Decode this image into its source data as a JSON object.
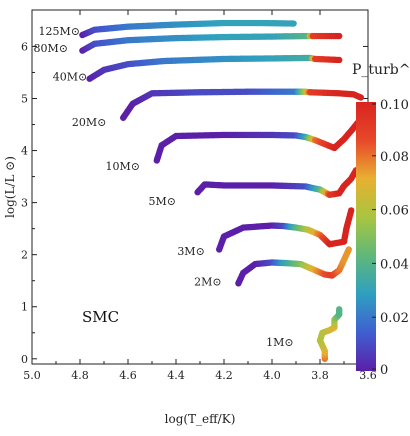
{
  "chart_data": {
    "type": "scatter",
    "xlabel": "log(T_eff/K)",
    "ylabel": "log(L/L ⊙)",
    "xlim": [
      5.0,
      3.6
    ],
    "ylim": [
      -0.1,
      6.7
    ],
    "x_ticks": [
      "5.0",
      "4.8",
      "4.6",
      "4.4",
      "4.2",
      "4.0",
      "3.8",
      "3.6"
    ],
    "x_tick_values": [
      5.0,
      4.8,
      4.6,
      4.4,
      4.2,
      4.0,
      3.8,
      3.6
    ],
    "y_ticks": [
      "0",
      "1",
      "2",
      "3",
      "4",
      "5",
      "6"
    ],
    "y_tick_values": [
      0,
      1,
      2,
      3,
      4,
      5,
      6
    ],
    "grid": false,
    "annotation": "SMC",
    "colorbar": {
      "title": "P_turb^max/P",
      "min": 0,
      "max": 0.1,
      "tick_labels": [
        "0.10",
        "0.08",
        "0.06",
        "0.04",
        "0.02",
        "0"
      ],
      "tick_values": [
        0.1,
        0.08,
        0.06,
        0.04,
        0.02,
        0
      ],
      "colors": [
        "#5b1fa8",
        "#3f5fd0",
        "#2f9fc0",
        "#5fb87a",
        "#a8c540",
        "#e8b030",
        "#e8482a",
        "#d8241f"
      ]
    },
    "tracks": [
      {
        "label": "125M⊙",
        "label_pos": [
          4.8,
          6.3
        ],
        "points": [
          [
            4.79,
            6.22,
            0.0
          ],
          [
            4.74,
            6.32,
            0.01
          ],
          [
            4.6,
            6.38,
            0.02
          ],
          [
            4.4,
            6.42,
            0.025
          ],
          [
            4.2,
            6.45,
            0.03
          ],
          [
            4.05,
            6.45,
            0.03
          ],
          [
            3.91,
            6.44,
            0.03
          ]
        ]
      },
      {
        "label": "80M⊙",
        "label_pos": [
          4.85,
          5.97
        ],
        "points": [
          [
            4.79,
            5.92,
            0.0
          ],
          [
            4.74,
            6.05,
            0.01
          ],
          [
            4.6,
            6.12,
            0.02
          ],
          [
            4.4,
            6.16,
            0.025
          ],
          [
            4.2,
            6.18,
            0.03
          ],
          [
            4.0,
            6.19,
            0.03
          ],
          [
            3.85,
            6.2,
            0.04
          ],
          [
            3.83,
            6.2,
            0.09
          ],
          [
            3.72,
            6.2,
            0.1
          ]
        ]
      },
      {
        "label": "40M⊙",
        "label_pos": [
          4.77,
          5.42
        ],
        "points": [
          [
            4.76,
            5.38,
            0.0
          ],
          [
            4.7,
            5.55,
            0.005
          ],
          [
            4.6,
            5.66,
            0.01
          ],
          [
            4.45,
            5.72,
            0.02
          ],
          [
            4.2,
            5.76,
            0.025
          ],
          [
            4.0,
            5.77,
            0.03
          ],
          [
            3.84,
            5.78,
            0.035
          ],
          [
            3.82,
            5.76,
            0.09
          ],
          [
            3.72,
            5.74,
            0.1
          ]
        ]
      },
      {
        "label": "20M⊙",
        "label_pos": [
          4.69,
          4.55
        ],
        "points": [
          [
            4.62,
            4.63,
            0.0
          ],
          [
            4.58,
            4.9,
            0.0
          ],
          [
            4.5,
            5.1,
            0.005
          ],
          [
            4.3,
            5.12,
            0.01
          ],
          [
            4.1,
            5.13,
            0.01
          ],
          [
            3.9,
            5.13,
            0.02
          ],
          [
            3.86,
            5.13,
            0.06
          ],
          [
            3.84,
            5.12,
            0.09
          ],
          [
            3.72,
            5.1,
            0.1
          ],
          [
            3.66,
            5.08,
            0.1
          ],
          [
            3.63,
            5.02,
            0.1
          ]
        ]
      },
      {
        "label": "10M⊙",
        "label_pos": [
          4.55,
          3.7
        ],
        "points": [
          [
            4.48,
            3.81,
            0.0
          ],
          [
            4.46,
            4.1,
            0.0
          ],
          [
            4.4,
            4.28,
            0.0
          ],
          [
            4.2,
            4.3,
            0.0
          ],
          [
            4.0,
            4.3,
            0.005
          ],
          [
            3.9,
            4.29,
            0.01
          ],
          [
            3.86,
            4.26,
            0.03
          ],
          [
            3.82,
            4.2,
            0.08
          ],
          [
            3.74,
            4.05,
            0.1
          ],
          [
            3.7,
            4.22,
            0.1
          ],
          [
            3.67,
            4.38,
            0.1
          ],
          [
            3.64,
            4.55,
            0.1
          ]
        ]
      },
      {
        "label": "5M⊙",
        "label_pos": [
          4.4,
          3.03
        ],
        "points": [
          [
            4.31,
            3.2,
            0.0
          ],
          [
            4.28,
            3.35,
            0.0
          ],
          [
            4.2,
            3.33,
            0.0
          ],
          [
            4.0,
            3.33,
            0.0
          ],
          [
            3.86,
            3.31,
            0.01
          ],
          [
            3.8,
            3.25,
            0.04
          ],
          [
            3.76,
            3.15,
            0.09
          ],
          [
            3.72,
            3.18,
            0.1
          ],
          [
            3.7,
            3.32,
            0.1
          ],
          [
            3.67,
            3.46,
            0.1
          ],
          [
            3.65,
            3.62,
            0.1
          ]
        ]
      },
      {
        "label": "3M⊙",
        "label_pos": [
          4.28,
          2.07
        ],
        "points": [
          [
            4.22,
            2.1,
            0.0
          ],
          [
            4.2,
            2.35,
            0.0
          ],
          [
            4.12,
            2.52,
            0.0
          ],
          [
            4.0,
            2.56,
            0.0
          ],
          [
            3.95,
            2.55,
            0.01
          ],
          [
            3.9,
            2.52,
            0.04
          ],
          [
            3.85,
            2.48,
            0.06
          ],
          [
            3.8,
            2.38,
            0.08
          ],
          [
            3.76,
            2.2,
            0.1
          ],
          [
            3.7,
            2.25,
            0.1
          ],
          [
            3.69,
            2.5,
            0.1
          ],
          [
            3.67,
            2.85,
            0.1
          ]
        ]
      },
      {
        "label": "2M⊙",
        "label_pos": [
          4.21,
          1.48
        ],
        "points": [
          [
            4.14,
            1.45,
            0.0
          ],
          [
            4.12,
            1.65,
            0.0
          ],
          [
            4.07,
            1.82,
            0.0
          ],
          [
            4.0,
            1.85,
            0.01
          ],
          [
            3.95,
            1.84,
            0.03
          ],
          [
            3.88,
            1.82,
            0.05
          ],
          [
            3.83,
            1.72,
            0.07
          ],
          [
            3.78,
            1.62,
            0.085
          ],
          [
            3.75,
            1.6,
            0.09
          ],
          [
            3.72,
            1.7,
            0.08
          ],
          [
            3.7,
            1.9,
            0.075
          ],
          [
            3.68,
            2.1,
            0.075
          ]
        ]
      },
      {
        "label": "1M⊙",
        "label_pos": [
          3.91,
          0.32
        ],
        "points": [
          [
            3.78,
            0.0,
            0.08
          ],
          [
            3.78,
            0.15,
            0.07
          ],
          [
            3.8,
            0.35,
            0.06
          ],
          [
            3.79,
            0.5,
            0.06
          ],
          [
            3.76,
            0.55,
            0.065
          ],
          [
            3.74,
            0.6,
            0.07
          ],
          [
            3.74,
            0.75,
            0.055
          ],
          [
            3.72,
            0.85,
            0.04
          ],
          [
            3.72,
            0.95,
            0.04
          ]
        ]
      }
    ]
  }
}
